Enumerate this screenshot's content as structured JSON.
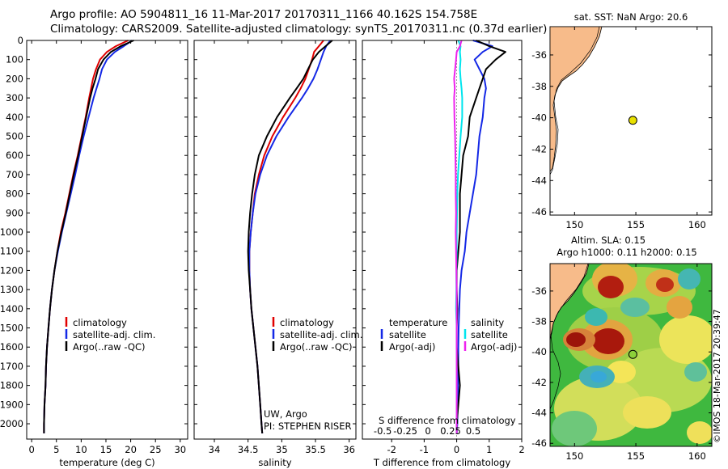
{
  "header": {
    "line1": "Argo profile: AO 5904811_16 11-Mar-2017 20170311_1166 40.162S 154.758E",
    "line2": "Climatology: CARS2009. Satellite-adjusted climatology: synTS_20170311.nc (0.37d earlier)"
  },
  "stamp": "©IMOS 18-Mar-2017 20:39:47",
  "colors": {
    "clim": "#e00000",
    "sat": "#1428e6",
    "argo": "#000000",
    "cyan": "#00e5ee",
    "magenta": "#ee22ee",
    "land": "#f7bb8a"
  },
  "chart_data": [
    {
      "type": "line",
      "id": "temperature",
      "xlabel": "temperature (deg C)",
      "ylabel": "",
      "xlim": [
        -1,
        31.5
      ],
      "ylim": [
        2080,
        0
      ],
      "xticks": [
        0,
        5,
        10,
        15,
        20,
        25,
        30
      ],
      "yticks": [
        0,
        100,
        200,
        300,
        400,
        500,
        600,
        700,
        800,
        900,
        1000,
        1100,
        1200,
        1300,
        1400,
        1500,
        1600,
        1700,
        1800,
        1900,
        2000
      ],
      "legend": [
        "climatology",
        "satellite-adj. clim.",
        "Argo(..raw -QC)"
      ],
      "depth": [
        0,
        30,
        60,
        100,
        150,
        200,
        250,
        300,
        400,
        500,
        600,
        700,
        800,
        900,
        1000,
        1100,
        1200,
        1300,
        1400,
        1500,
        1600,
        1700,
        1800,
        1900,
        2000,
        2050
      ],
      "series": [
        {
          "name": "climatology",
          "color": "clim",
          "values": [
            19.5,
            17.0,
            15.2,
            13.8,
            13.0,
            12.4,
            12.0,
            11.6,
            10.9,
            10.1,
            9.3,
            8.4,
            7.6,
            6.8,
            5.9,
            5.2,
            4.6,
            4.1,
            3.7,
            3.4,
            3.1,
            2.9,
            2.8,
            2.6,
            2.5,
            2.5
          ]
        },
        {
          "name": "satellite-adj. clim.",
          "color": "sat",
          "values": [
            20.3,
            18.6,
            16.8,
            15.2,
            14.2,
            13.7,
            13.1,
            12.5,
            11.5,
            10.5,
            9.6,
            8.8,
            7.9,
            7.0,
            6.1,
            5.3,
            4.6,
            4.1,
            3.7,
            3.4,
            3.1,
            2.9,
            2.8,
            2.6,
            2.5,
            2.5
          ]
        },
        {
          "name": "Argo(..raw -QC)",
          "color": "argo",
          "values": [
            20.6,
            18.0,
            16.0,
            14.5,
            13.4,
            12.9,
            12.3,
            11.8,
            11.0,
            10.2,
            9.4,
            8.5,
            7.7,
            6.9,
            6.0,
            5.2,
            4.6,
            4.1,
            3.7,
            3.4,
            3.1,
            2.9,
            2.8,
            2.6,
            2.5,
            2.5
          ]
        }
      ]
    },
    {
      "type": "line",
      "id": "salinity",
      "xlabel": "salinity",
      "xlim": [
        33.7,
        36.1
      ],
      "ylim": [
        2080,
        0
      ],
      "xticks": [
        34,
        34.5,
        35,
        35.5,
        36
      ],
      "yticks": [
        0,
        100,
        200,
        300,
        400,
        500,
        600,
        700,
        800,
        900,
        1000,
        1100,
        1200,
        1300,
        1400,
        1500,
        1600,
        1700,
        1800,
        1900,
        2000
      ],
      "legend": [
        "climatology",
        "satellite-adj. clim.",
        "Argo(..raw -QC)"
      ],
      "annotation": [
        "UW, Argo",
        "PI: STEPHEN RISER"
      ],
      "depth": [
        0,
        30,
        60,
        100,
        150,
        200,
        250,
        300,
        400,
        500,
        600,
        700,
        800,
        900,
        1000,
        1100,
        1200,
        1300,
        1400,
        1500,
        1600,
        1700,
        1800,
        1900,
        2000,
        2050
      ],
      "series": [
        {
          "name": "climatology",
          "color": "clim",
          "values": [
            35.62,
            35.55,
            35.48,
            35.45,
            35.4,
            35.35,
            35.28,
            35.2,
            35.02,
            34.86,
            34.74,
            34.66,
            34.6,
            34.57,
            34.54,
            34.52,
            34.52,
            34.53,
            34.55,
            34.58,
            34.61,
            34.64,
            34.66,
            34.68,
            34.7,
            34.71
          ]
        },
        {
          "name": "satellite-adj. clim.",
          "color": "sat",
          "values": [
            35.72,
            35.66,
            35.62,
            35.58,
            35.53,
            35.47,
            35.39,
            35.3,
            35.1,
            34.92,
            34.78,
            34.68,
            34.61,
            34.57,
            34.54,
            34.52,
            34.52,
            34.53,
            34.55,
            34.58,
            34.61,
            34.64,
            34.66,
            34.68,
            34.7,
            34.71
          ]
        },
        {
          "name": "Argo(..raw -QC)",
          "color": "argo",
          "values": [
            35.75,
            35.65,
            35.55,
            35.46,
            35.39,
            35.32,
            35.22,
            35.12,
            34.93,
            34.78,
            34.66,
            34.6,
            34.56,
            34.53,
            34.51,
            34.5,
            34.51,
            34.53,
            34.55,
            34.58,
            34.61,
            34.64,
            34.66,
            34.68,
            34.7,
            34.71
          ]
        }
      ]
    },
    {
      "type": "line",
      "id": "difference",
      "xlabel": "T difference from climatology",
      "xlabel_top": "S difference from climatology",
      "xlim": [
        -2.9,
        2.0
      ],
      "ylim": [
        2080,
        0
      ],
      "xticks": [
        -2,
        -1,
        0,
        1,
        2
      ],
      "sticks": [
        -0.5,
        -0.25,
        0,
        0.25,
        0.5
      ],
      "yticks": [
        0,
        100,
        200,
        300,
        400,
        500,
        600,
        700,
        800,
        900,
        1000,
        1100,
        1200,
        1300,
        1400,
        1500,
        1600,
        1700,
        1800,
        1900,
        2000
      ],
      "legend_titles": [
        "temperature",
        "salinity"
      ],
      "legend_left": [
        "satellite",
        "Argo(-adj)"
      ],
      "legend_right": [
        "satellite",
        "Argo(-adj)"
      ],
      "depth": [
        0,
        30,
        60,
        100,
        150,
        200,
        250,
        300,
        400,
        500,
        600,
        700,
        800,
        900,
        1000,
        1100,
        1200,
        1300,
        1400,
        1500,
        1600,
        1700,
        1800,
        1900,
        2000,
        2050
      ],
      "series": [
        {
          "name": "temperature satellite",
          "color": "sat",
          "values": [
            0.5,
            1.1,
            0.8,
            0.55,
            0.7,
            0.85,
            0.9,
            0.85,
            0.8,
            0.7,
            0.65,
            0.6,
            0.5,
            0.4,
            0.3,
            0.25,
            0.15,
            0.1,
            0.08,
            0.06,
            0.05,
            0.05,
            0.04,
            0.03,
            0.02,
            0.0
          ]
        },
        {
          "name": "temperature Argo(-adj)",
          "color": "argo",
          "values": [
            0.6,
            1.0,
            1.5,
            1.2,
            0.9,
            0.8,
            0.7,
            0.6,
            0.4,
            0.35,
            0.2,
            0.15,
            0.1,
            0.1,
            0.1,
            0.05,
            0.0,
            0.0,
            0.02,
            0.0,
            0.0,
            0.05,
            0.1,
            0.05,
            0.0,
            0.0
          ]
        },
        {
          "name": "salinity satellite",
          "color": "cyan",
          "values": [
            0.05,
            0.12,
            0.1,
            0.12,
            0.1,
            0.12,
            0.15,
            0.17,
            0.17,
            0.12,
            0.08,
            0.04,
            0.02,
            0.01,
            0.0,
            0.0,
            -0.01,
            -0.01,
            -0.02,
            0.0,
            0.0,
            0.0,
            0.0,
            0.0,
            0.0,
            0.0
          ]
        },
        {
          "name": "salinity Argo(-adj)",
          "color": "magenta",
          "values": [
            0.15,
            0.1,
            0.0,
            -0.02,
            -0.05,
            -0.08,
            -0.06,
            -0.08,
            -0.07,
            -0.05,
            -0.04,
            -0.03,
            -0.03,
            -0.02,
            -0.03,
            -0.02,
            -0.01,
            0.0,
            0.0,
            0.0,
            0.0,
            0.0,
            0.0,
            0.0,
            0.0,
            0.0
          ]
        }
      ]
    }
  ],
  "maps": {
    "top": {
      "title": "sat. SST: NaN Argo: 20.6",
      "xticks": [
        150,
        155,
        160
      ],
      "yticks": [
        -36,
        -38,
        -40,
        -42,
        -44,
        -46
      ],
      "xlim": [
        148,
        161.2
      ],
      "ylim": [
        -46.2,
        -34.2
      ],
      "float": [
        154.758,
        -40.162
      ]
    },
    "bottom": {
      "title1": "Altim. SLA: 0.15",
      "title2": "Argo h1000: 0.11 h2000: 0.15",
      "xticks": [
        150,
        155,
        160
      ],
      "yticks": [
        -36,
        -38,
        -40,
        -42,
        -44,
        -46
      ],
      "xlim": [
        148,
        161.2
      ],
      "ylim": [
        -46.2,
        -34.2
      ],
      "float": [
        154.758,
        -40.162
      ]
    }
  }
}
